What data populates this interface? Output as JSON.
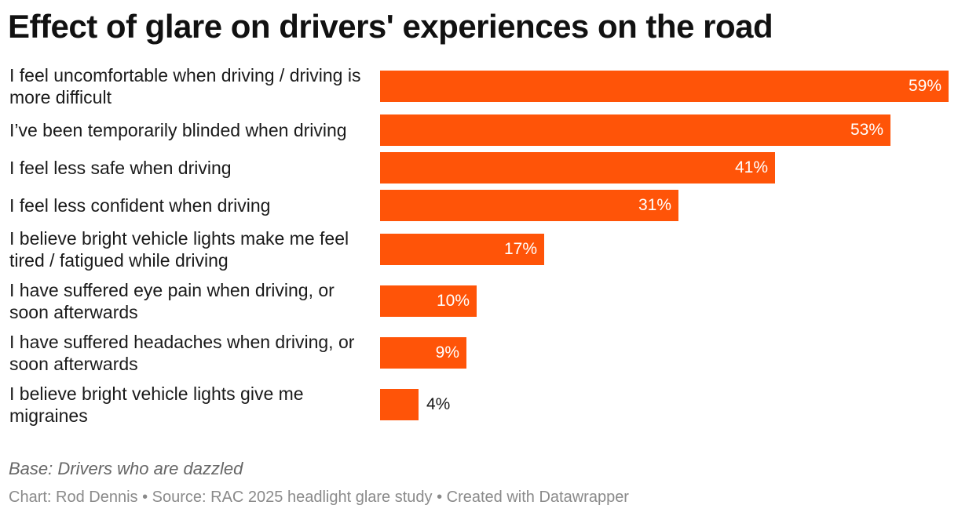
{
  "chart_data": {
    "type": "bar",
    "orientation": "horizontal",
    "title": "Effect of glare on drivers' experiences on the road",
    "categories": [
      "I feel uncomfortable when driving / driving is more difficult",
      "I’ve been temporarily blinded when driving",
      "I feel less safe when driving",
      "I feel less confident when driving",
      "I believe bright vehicle lights make me feel tired / fatigued while driving",
      "I have suffered eye pain when driving, or soon afterwards",
      "I have suffered headaches when driving, or soon afterwards",
      "I believe bright vehicle lights give me migraines"
    ],
    "values": [
      59,
      53,
      41,
      31,
      17,
      10,
      9,
      4
    ],
    "value_labels": [
      "59%",
      "53%",
      "41%",
      "31%",
      "17%",
      "10%",
      "9%",
      "4%"
    ],
    "xlim": [
      0,
      59
    ],
    "bar_color": "#ff5408",
    "grid": false,
    "legend": "none",
    "note": "Base: Drivers who are dazzled",
    "footer": "Chart: Rod Dennis • Source: RAC 2025 headlight glare study • Created with Datawrapper"
  }
}
